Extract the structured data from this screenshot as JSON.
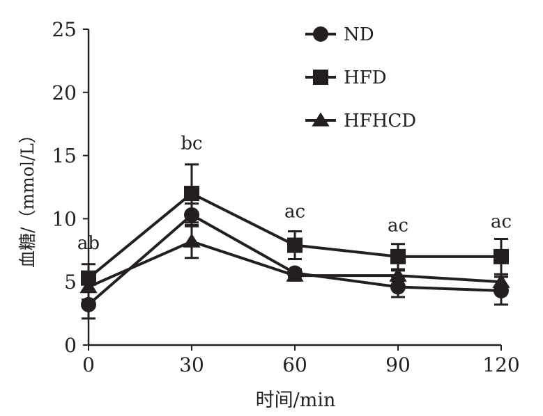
{
  "chart_data": {
    "type": "line",
    "title": "",
    "xlabel": "时间/min",
    "ylabel": "血糖/（mmol/L）",
    "x": [
      0,
      30,
      60,
      90,
      120
    ],
    "xticks": [
      "0",
      "30",
      "60",
      "90",
      "120"
    ],
    "yticks": [
      "0",
      "5",
      "10",
      "15",
      "20",
      "25"
    ],
    "xlim": [
      0,
      120
    ],
    "ylim": [
      0,
      25
    ],
    "grid": false,
    "legend_position": "top-right",
    "series": [
      {
        "name": "ND",
        "marker": "circle",
        "values": [
          3.2,
          10.3,
          5.7,
          4.6,
          4.3
        ],
        "errors": [
          1.1,
          0.9,
          0.3,
          0.8,
          1.1
        ]
      },
      {
        "name": "HFD",
        "marker": "square",
        "values": [
          5.3,
          12.0,
          7.9,
          7.0,
          7.0
        ],
        "errors": [
          1.1,
          2.3,
          1.1,
          1.0,
          1.4
        ]
      },
      {
        "name": "HFHCD",
        "marker": "triangle",
        "values": [
          4.6,
          8.2,
          5.5,
          5.5,
          5.0
        ],
        "errors": [
          1.0,
          1.3,
          0.4,
          0.4,
          0.4
        ]
      }
    ],
    "annotations": [
      {
        "x": 0,
        "text": "ab",
        "y": 7.6
      },
      {
        "x": 30,
        "text": "bc",
        "y": 15.5
      },
      {
        "x": 60,
        "text": "ac",
        "y": 10.1
      },
      {
        "x": 90,
        "text": "ac",
        "y": 9.0
      },
      {
        "x": 120,
        "text": "ac",
        "y": 9.3
      }
    ],
    "colors": {
      "ink": "#231f20"
    }
  }
}
